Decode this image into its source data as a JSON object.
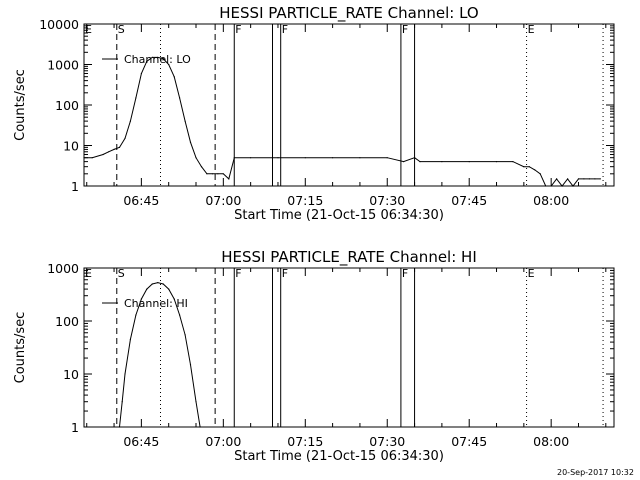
{
  "footer": {
    "timestamp": "20-Sep-2017 10:32"
  },
  "chart_data": [
    {
      "type": "line",
      "title": "HESSI PARTICLE_RATE Channel: LO",
      "xlabel": "Start Time (21-Oct-15 06:34:30)",
      "ylabel": "Counts/sec",
      "y_scale": "log",
      "ylim": [
        1,
        10000
      ],
      "y_ticks": [
        1,
        10,
        100,
        1000,
        10000
      ],
      "y_tick_labels": [
        "1",
        "10",
        "100",
        "1000",
        "10000"
      ],
      "xlim": [
        "06:34:30",
        "08:11:30"
      ],
      "x_ticks": [
        "06:45",
        "07:00",
        "07:15",
        "07:30",
        "07:45",
        "08:00"
      ],
      "legend": {
        "label": "Channel: LO",
        "position": "top-left"
      },
      "event_markers": [
        {
          "label": "E",
          "time": "06:34:30",
          "style": "dotted"
        },
        {
          "label": "S",
          "time": "06:40:30",
          "style": "dashed"
        },
        {
          "label": "",
          "time": "06:48:30",
          "style": "dotted"
        },
        {
          "label": "",
          "time": "06:58:30",
          "style": "dashed"
        },
        {
          "label": "F",
          "time": "07:02:00",
          "style": "solid"
        },
        {
          "label": "",
          "time": "07:09:00",
          "style": "solid"
        },
        {
          "label": "F",
          "time": "07:10:30",
          "style": "solid"
        },
        {
          "label": "F",
          "time": "07:32:30",
          "style": "solid"
        },
        {
          "label": "",
          "time": "07:35:00",
          "style": "solid"
        },
        {
          "label": "E",
          "time": "07:55:30",
          "style": "dotted"
        },
        {
          "label": "",
          "time": "08:09:30",
          "style": "dotted"
        }
      ],
      "series": [
        {
          "name": "Channel: LO",
          "time": [
            "06:34:30",
            "06:36:00",
            "06:38:00",
            "06:39:00",
            "06:40:00",
            "06:41:00",
            "06:42:00",
            "06:43:00",
            "06:44:00",
            "06:45:00",
            "06:46:00",
            "06:47:00",
            "06:48:00",
            "06:49:00",
            "06:50:00",
            "06:51:00",
            "06:52:00",
            "06:53:00",
            "06:54:00",
            "06:55:00",
            "06:56:00",
            "06:57:00",
            "06:58:00",
            "06:59:00",
            "07:00:00",
            "07:01:00",
            "07:02:00",
            "07:05:00",
            "07:10:00",
            "07:15:00",
            "07:20:00",
            "07:25:00",
            "07:30:00",
            "07:33:00",
            "07:35:00",
            "07:36:00",
            "07:40:00",
            "07:45:00",
            "07:50:00",
            "07:53:00",
            "07:55:00",
            "07:56:00",
            "07:57:00",
            "07:58:00",
            "07:59:00",
            "08:00:00",
            "08:01:00",
            "08:02:00",
            "08:03:00",
            "08:04:00",
            "08:05:00",
            "08:06:00",
            "08:07:00",
            "08:08:00",
            "08:09:00"
          ],
          "values": [
            5,
            5,
            6,
            7,
            8,
            9,
            15,
            40,
            150,
            600,
            1200,
            1500,
            1500,
            1400,
            1000,
            500,
            150,
            40,
            12,
            5,
            3,
            2,
            2,
            2,
            2,
            1.5,
            5,
            5,
            5,
            5,
            5,
            5,
            5,
            4,
            5,
            4,
            4,
            4,
            4,
            4,
            3,
            3,
            2.5,
            2,
            1,
            1,
            1.5,
            1,
            1.5,
            1,
            1.5,
            1.5,
            1.5,
            1.5,
            1.5
          ]
        }
      ]
    },
    {
      "type": "line",
      "title": "HESSI PARTICLE_RATE Channel: HI",
      "xlabel": "Start Time (21-Oct-15 06:34:30)",
      "ylabel": "Counts/sec",
      "y_scale": "log",
      "ylim": [
        1,
        1000
      ],
      "y_ticks": [
        1,
        10,
        100,
        1000
      ],
      "y_tick_labels": [
        "1",
        "10",
        "100",
        "1000"
      ],
      "xlim": [
        "06:34:30",
        "08:11:30"
      ],
      "x_ticks": [
        "06:45",
        "07:00",
        "07:15",
        "07:30",
        "07:45",
        "08:00"
      ],
      "legend": {
        "label": "Channel: HI",
        "position": "top-left"
      },
      "event_markers": [
        {
          "label": "E",
          "time": "06:34:30",
          "style": "dotted"
        },
        {
          "label": "S",
          "time": "06:40:30",
          "style": "dashed"
        },
        {
          "label": "",
          "time": "06:48:30",
          "style": "dotted"
        },
        {
          "label": "",
          "time": "06:58:30",
          "style": "dashed"
        },
        {
          "label": "F",
          "time": "07:02:00",
          "style": "solid"
        },
        {
          "label": "",
          "time": "07:09:00",
          "style": "solid"
        },
        {
          "label": "F",
          "time": "07:10:30",
          "style": "solid"
        },
        {
          "label": "F",
          "time": "07:32:30",
          "style": "solid"
        },
        {
          "label": "",
          "time": "07:35:00",
          "style": "solid"
        },
        {
          "label": "E",
          "time": "07:55:30",
          "style": "dotted"
        },
        {
          "label": "",
          "time": "08:09:30",
          "style": "dotted"
        }
      ],
      "series": [
        {
          "name": "Channel: HI",
          "time": [
            "06:41:00",
            "06:41:30",
            "06:42:00",
            "06:43:00",
            "06:44:00",
            "06:45:00",
            "06:46:00",
            "06:47:00",
            "06:48:00",
            "06:49:00",
            "06:50:00",
            "06:51:00",
            "06:52:00",
            "06:53:00",
            "06:54:00",
            "06:55:00",
            "06:55:45"
          ],
          "values": [
            1,
            3,
            10,
            45,
            130,
            260,
            400,
            500,
            530,
            500,
            400,
            260,
            130,
            55,
            15,
            3,
            1
          ]
        }
      ]
    }
  ]
}
